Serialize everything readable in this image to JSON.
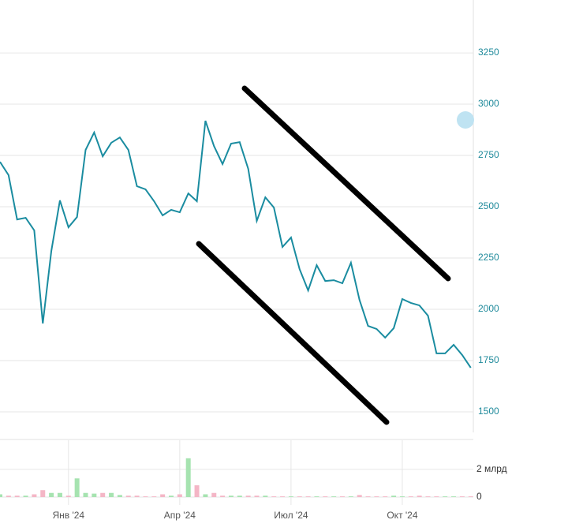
{
  "chart_data": {
    "type": "line",
    "categories": [
      null,
      null,
      null,
      null,
      null,
      null,
      null,
      null,
      "Янв '24",
      null,
      null,
      null,
      null,
      null,
      null,
      null,
      null,
      null,
      null,
      null,
      null,
      "Апр '24",
      null,
      null,
      null,
      null,
      null,
      null,
      null,
      null,
      null,
      null,
      null,
      null,
      "Июл '24",
      null,
      null,
      null,
      null,
      null,
      null,
      null,
      null,
      null,
      null,
      null,
      null,
      "Окт '24",
      null,
      null,
      null,
      null,
      null,
      null,
      null,
      null
    ],
    "series": [
      {
        "color": "#1a8ca0",
        "values": [
          2719,
          2654,
          2438,
          2446,
          2385,
          1931,
          2285,
          2531,
          2400,
          2450,
          2777,
          2862,
          2746,
          2812,
          2838,
          2777,
          2600,
          2585,
          2527,
          2458,
          2485,
          2473,
          2565,
          2527,
          2919,
          2796,
          2708,
          2808,
          2815,
          2685,
          2431,
          2546,
          2496,
          2304,
          2350,
          2196,
          2092,
          2215,
          2138,
          2142,
          2127,
          2227,
          2046,
          1919,
          1904,
          1862,
          1908,
          2050,
          2031,
          2019,
          1969,
          1785,
          1785,
          1827,
          1777,
          1715
        ]
      }
    ],
    "ylim": [
      1400,
      3508
    ],
    "yticks": [
      1500,
      1750,
      2000,
      2250,
      2500,
      2750,
      3000,
      3250
    ],
    "grid": true,
    "volume": {
      "type": "bar",
      "up_color": "#a6e3b0",
      "down_color": "#f4b6c6",
      "values": [
        0.2,
        0.1,
        0.1,
        0.1,
        0.2,
        0.5,
        0.3,
        0.3,
        0.1,
        1.35,
        0.3,
        0.25,
        0.3,
        0.3,
        0.15,
        0.1,
        0.1,
        0.05,
        0.05,
        0.2,
        0.1,
        0.2,
        2.8,
        0.85,
        0.2,
        0.3,
        0.1,
        0.1,
        0.1,
        0.1,
        0.1,
        0.1,
        0.05,
        0.05,
        0.05,
        0.05,
        0.05,
        0.05,
        0.05,
        0.05,
        0.05,
        0.05,
        0.15,
        0.05,
        0.05,
        0.05,
        0.1,
        0.05,
        0.05,
        0.1,
        0.05,
        0.05,
        0.05,
        0.05,
        0.05,
        0.05
      ],
      "ylim": [
        0,
        4.1
      ],
      "yticks": [
        0,
        {
          "value": 2,
          "label": "2 млрд"
        }
      ]
    }
  }
}
